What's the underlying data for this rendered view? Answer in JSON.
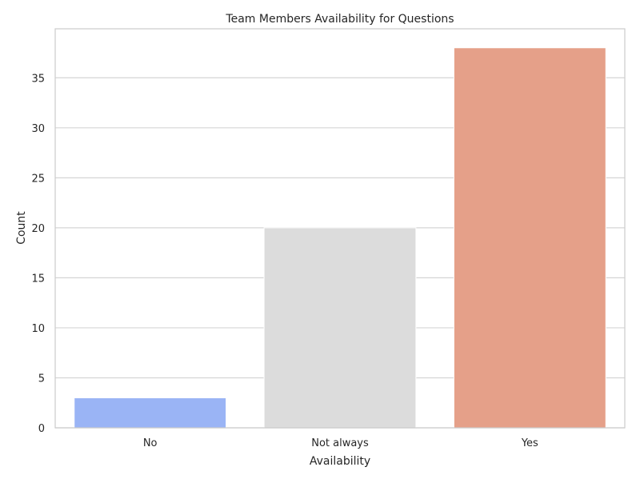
{
  "chart_data": {
    "type": "bar",
    "title": "Team Members Availability for Questions",
    "xlabel": "Availability",
    "ylabel": "Count",
    "categories": [
      "No",
      "Not always",
      "Yes"
    ],
    "values": [
      3,
      20,
      38
    ],
    "colors": [
      "#9ab4f5",
      "#dcdcdc",
      "#e5a089"
    ],
    "ylim": [
      0,
      39.9
    ],
    "yticks": [
      0,
      5,
      10,
      15,
      20,
      25,
      30,
      35
    ],
    "grid": true,
    "grid_axis": "y",
    "legend": false
  },
  "style": {
    "grid_color": "#d5d5d5",
    "frame_color": "#cccccc",
    "text_color": "#262626"
  }
}
